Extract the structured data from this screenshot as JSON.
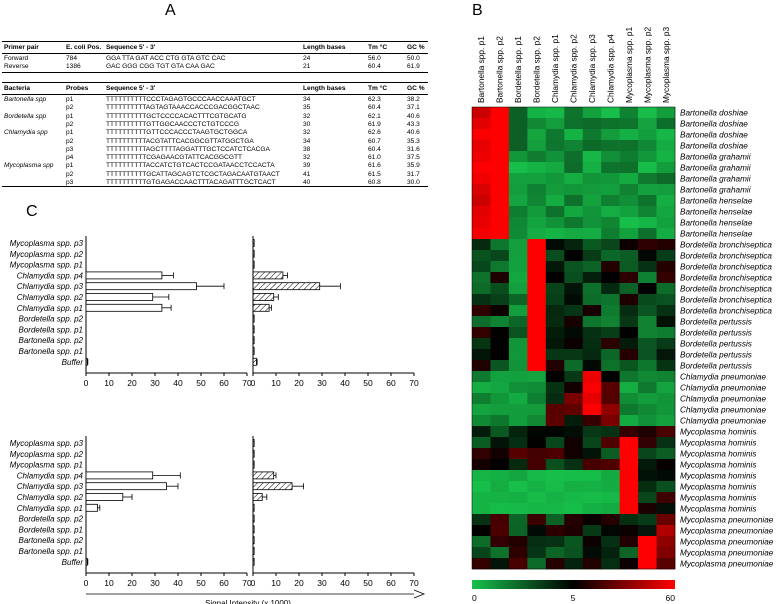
{
  "panels": {
    "a": "A",
    "b": "B",
    "c": "C"
  },
  "table_primers": {
    "headers": [
      "Primer pair",
      "E. coli Pos.",
      "Sequence 5' - 3'",
      "Length bases",
      "Tm °C",
      "GC %"
    ],
    "rows": [
      [
        "Forward",
        "784",
        "GGA TTA GAT ACC CTG GTA GTC CAC",
        "24",
        "56.0",
        "50.0"
      ],
      [
        "Reverse",
        "1386",
        "GAC GGG CGG TGT GTA CAA GAC",
        "21",
        "60.4",
        "61.9"
      ]
    ]
  },
  "table_probes": {
    "headers": [
      "Bacteria",
      "Probes",
      "Sequence 5' - 3'",
      "Length bases",
      "Tm °C",
      "GC %"
    ],
    "rows": [
      [
        "Bartonella spp",
        "p1",
        "TTTTTTTTTTCCCTAGAGTGCCCAACCAAATGCT",
        "34",
        "62.3",
        "38.2"
      ],
      [
        "",
        "p2",
        "TTTTTTTTTTAGTAGTAAACCACCCGACGGCTAAC",
        "35",
        "60.4",
        "37.1"
      ],
      [
        "Bordetella spp",
        "p1",
        "TTTTTTTTTTGCTCCCCACACTTTCGTGCATG",
        "32",
        "62.1",
        "40.6"
      ],
      [
        "",
        "p2",
        "TTTTTTTTTTGTTGGCAACCCTCTGTCCCG",
        "30",
        "61.9",
        "43.3"
      ],
      [
        "Chlamydia spp",
        "p1",
        "TTTTTTTTTTGTTCCCACCCTAAGTGCTGGCA",
        "32",
        "62.6",
        "40.6"
      ],
      [
        "",
        "p2",
        "TTTTTTTTTTACGTATTCACGGCGTTATGGCTGA",
        "34",
        "60.7",
        "35.3"
      ],
      [
        "",
        "p3",
        "TTTTTTTTTTAGCTTTTAGGATTTGCTCCATCTCACGA",
        "38",
        "60.4",
        "31.6"
      ],
      [
        "",
        "p4",
        "TTTTTTTTTTCGAGAACGTATTCACGGCGTT",
        "32",
        "61.0",
        "37.5"
      ],
      [
        "Mycoplasma spp",
        "p1",
        "TTTTTTTTTTACCATCTGTCACTCCGATAACCTCCACTA",
        "39",
        "61.6",
        "35.9"
      ],
      [
        "",
        "p2",
        "TTTTTTTTTTGCATTAGCAGTCTCGCTAGACAATGTAACT",
        "41",
        "61.5",
        "31.7"
      ],
      [
        "",
        "p3",
        "TTTTTTTTTTGTGAGACCAACTTTACAGATTTGCTCACT",
        "40",
        "60.8",
        "30.0"
      ]
    ]
  },
  "heatmap": {
    "columns": [
      "Bartonella spp. p1",
      "Bartonella spp. p2",
      "Bordetella spp. p1",
      "Bordetella spp. p2",
      "Chlamydia spp. p1",
      "Chlamydia spp. p2",
      "Chlamydia spp. p3",
      "Chlamydia spp. p4",
      "Mycoplasma spp. p1",
      "Mycoplasma spp. p2",
      "Mycoplasma spp. p3"
    ],
    "rows": [
      "Bartonella doshiae",
      "Bartonella doshiae",
      "Bartonella doshiae",
      "Bartonella doshiae",
      "Bartonella grahamii",
      "Bartonella grahamii",
      "Bartonella grahamii",
      "Bartonella grahamii",
      "Bartonella henselae",
      "Bartonella henselae",
      "Bartonella henselae",
      "Bartonella henselae",
      "Bordetella bronchiseptica",
      "Bordetella bronchiseptica",
      "Bordetella bronchiseptica",
      "Bordetella bronchiseptica",
      "Bordetella bronchiseptica",
      "Bordetella bronchiseptica",
      "Bordetella bronchiseptica",
      "Bordetella pertussis",
      "Bordetella pertussis",
      "Bordetella pertussis",
      "Bordetella pertussis",
      "Bordetella pertussis",
      "Chlamydia pneumoniae",
      "Chlamydia pneumoniae",
      "Chlamydia pneumoniae",
      "Chlamydia pneumoniae",
      "Chlamydia pneumoniae",
      "Mycoplasma hominis",
      "Mycoplasma hominis",
      "Mycoplasma hominis",
      "Mycoplasma hominis",
      "Mycoplasma hominis",
      "Mycoplasma hominis",
      "Mycoplasma hominis",
      "Mycoplasma hominis",
      "Mycoplasma pneumoniae",
      "Mycoplasma pneumoniae",
      "Mycoplasma pneumoniae",
      "Mycoplasma pneumoniae",
      "Mycoplasma pneumoniae"
    ],
    "colorbar": {
      "min": "0",
      "mid": "5",
      "max": "60",
      "low_color": "#17c04a",
      "mid_color": "#000000",
      "high_color": "#ff0000"
    }
  },
  "chart_data": [
    {
      "type": "bar",
      "orientation": "horizontal",
      "categories": [
        "Mycoplasma spp. p3",
        "Mycoplasma spp. p2",
        "Mycoplasma spp. p1",
        "Chlamydia spp. p4",
        "Chlamydia spp. p3",
        "Chlamydia spp. p2",
        "Chlamydia spp. p1",
        "Bordetella spp. p2",
        "Bordetella spp. p1",
        "Bartonella spp. p2",
        "Bartonella spp. p1",
        "Buffer"
      ],
      "series": [
        {
          "values": [
            0,
            0,
            0,
            33,
            48,
            29,
            33,
            0,
            0,
            0,
            0,
            0.5
          ],
          "errors": [
            0,
            0,
            0,
            5,
            12,
            7,
            4,
            0,
            0,
            0,
            0,
            0.3
          ],
          "fill": "white"
        },
        {
          "values": [
            0.5,
            0.5,
            0.5,
            13,
            29,
            9,
            7,
            0.5,
            0.5,
            0.5,
            0.5,
            1.5
          ],
          "errors": [
            0,
            0,
            0,
            2,
            9,
            2,
            1,
            0,
            0,
            0,
            0,
            0.3
          ],
          "fill": "hatched"
        }
      ],
      "xticks": [
        0,
        10,
        20,
        30,
        40,
        50,
        60,
        70
      ],
      "xlim": [
        0,
        70
      ]
    },
    {
      "type": "bar",
      "orientation": "horizontal",
      "categories": [
        "Mycoplasma spp. p3",
        "Mycoplasma spp. p2",
        "Mycoplasma spp. p1",
        "Chlamydia spp. p4",
        "Chlamydia spp. p3",
        "Chlamydia spp. p2",
        "Chlamydia spp. p1",
        "Bordetella spp. p2",
        "Bordetella spp. p1",
        "Bartonella spp. p2",
        "Bartonella spp. p1",
        "Buffer"
      ],
      "series": [
        {
          "values": [
            0,
            0,
            0,
            29,
            35,
            16,
            5,
            0,
            0,
            0,
            0,
            0.5
          ],
          "errors": [
            0,
            0,
            0,
            12,
            5,
            4,
            1,
            0,
            0,
            0,
            0,
            0.3
          ],
          "fill": "white"
        },
        {
          "values": [
            0.5,
            0.5,
            0.5,
            9,
            17,
            4,
            0.5,
            0.5,
            0.5,
            0.5,
            0.5,
            0.5
          ],
          "errors": [
            0,
            0,
            0,
            1,
            5,
            2,
            0,
            0,
            0,
            0,
            0,
            0
          ],
          "fill": "hatched"
        }
      ],
      "xticks": [
        0,
        10,
        20,
        30,
        40,
        50,
        60,
        70
      ],
      "xlim": [
        0,
        70
      ],
      "xlabel": "Signal Intensity (x 1000)"
    }
  ]
}
